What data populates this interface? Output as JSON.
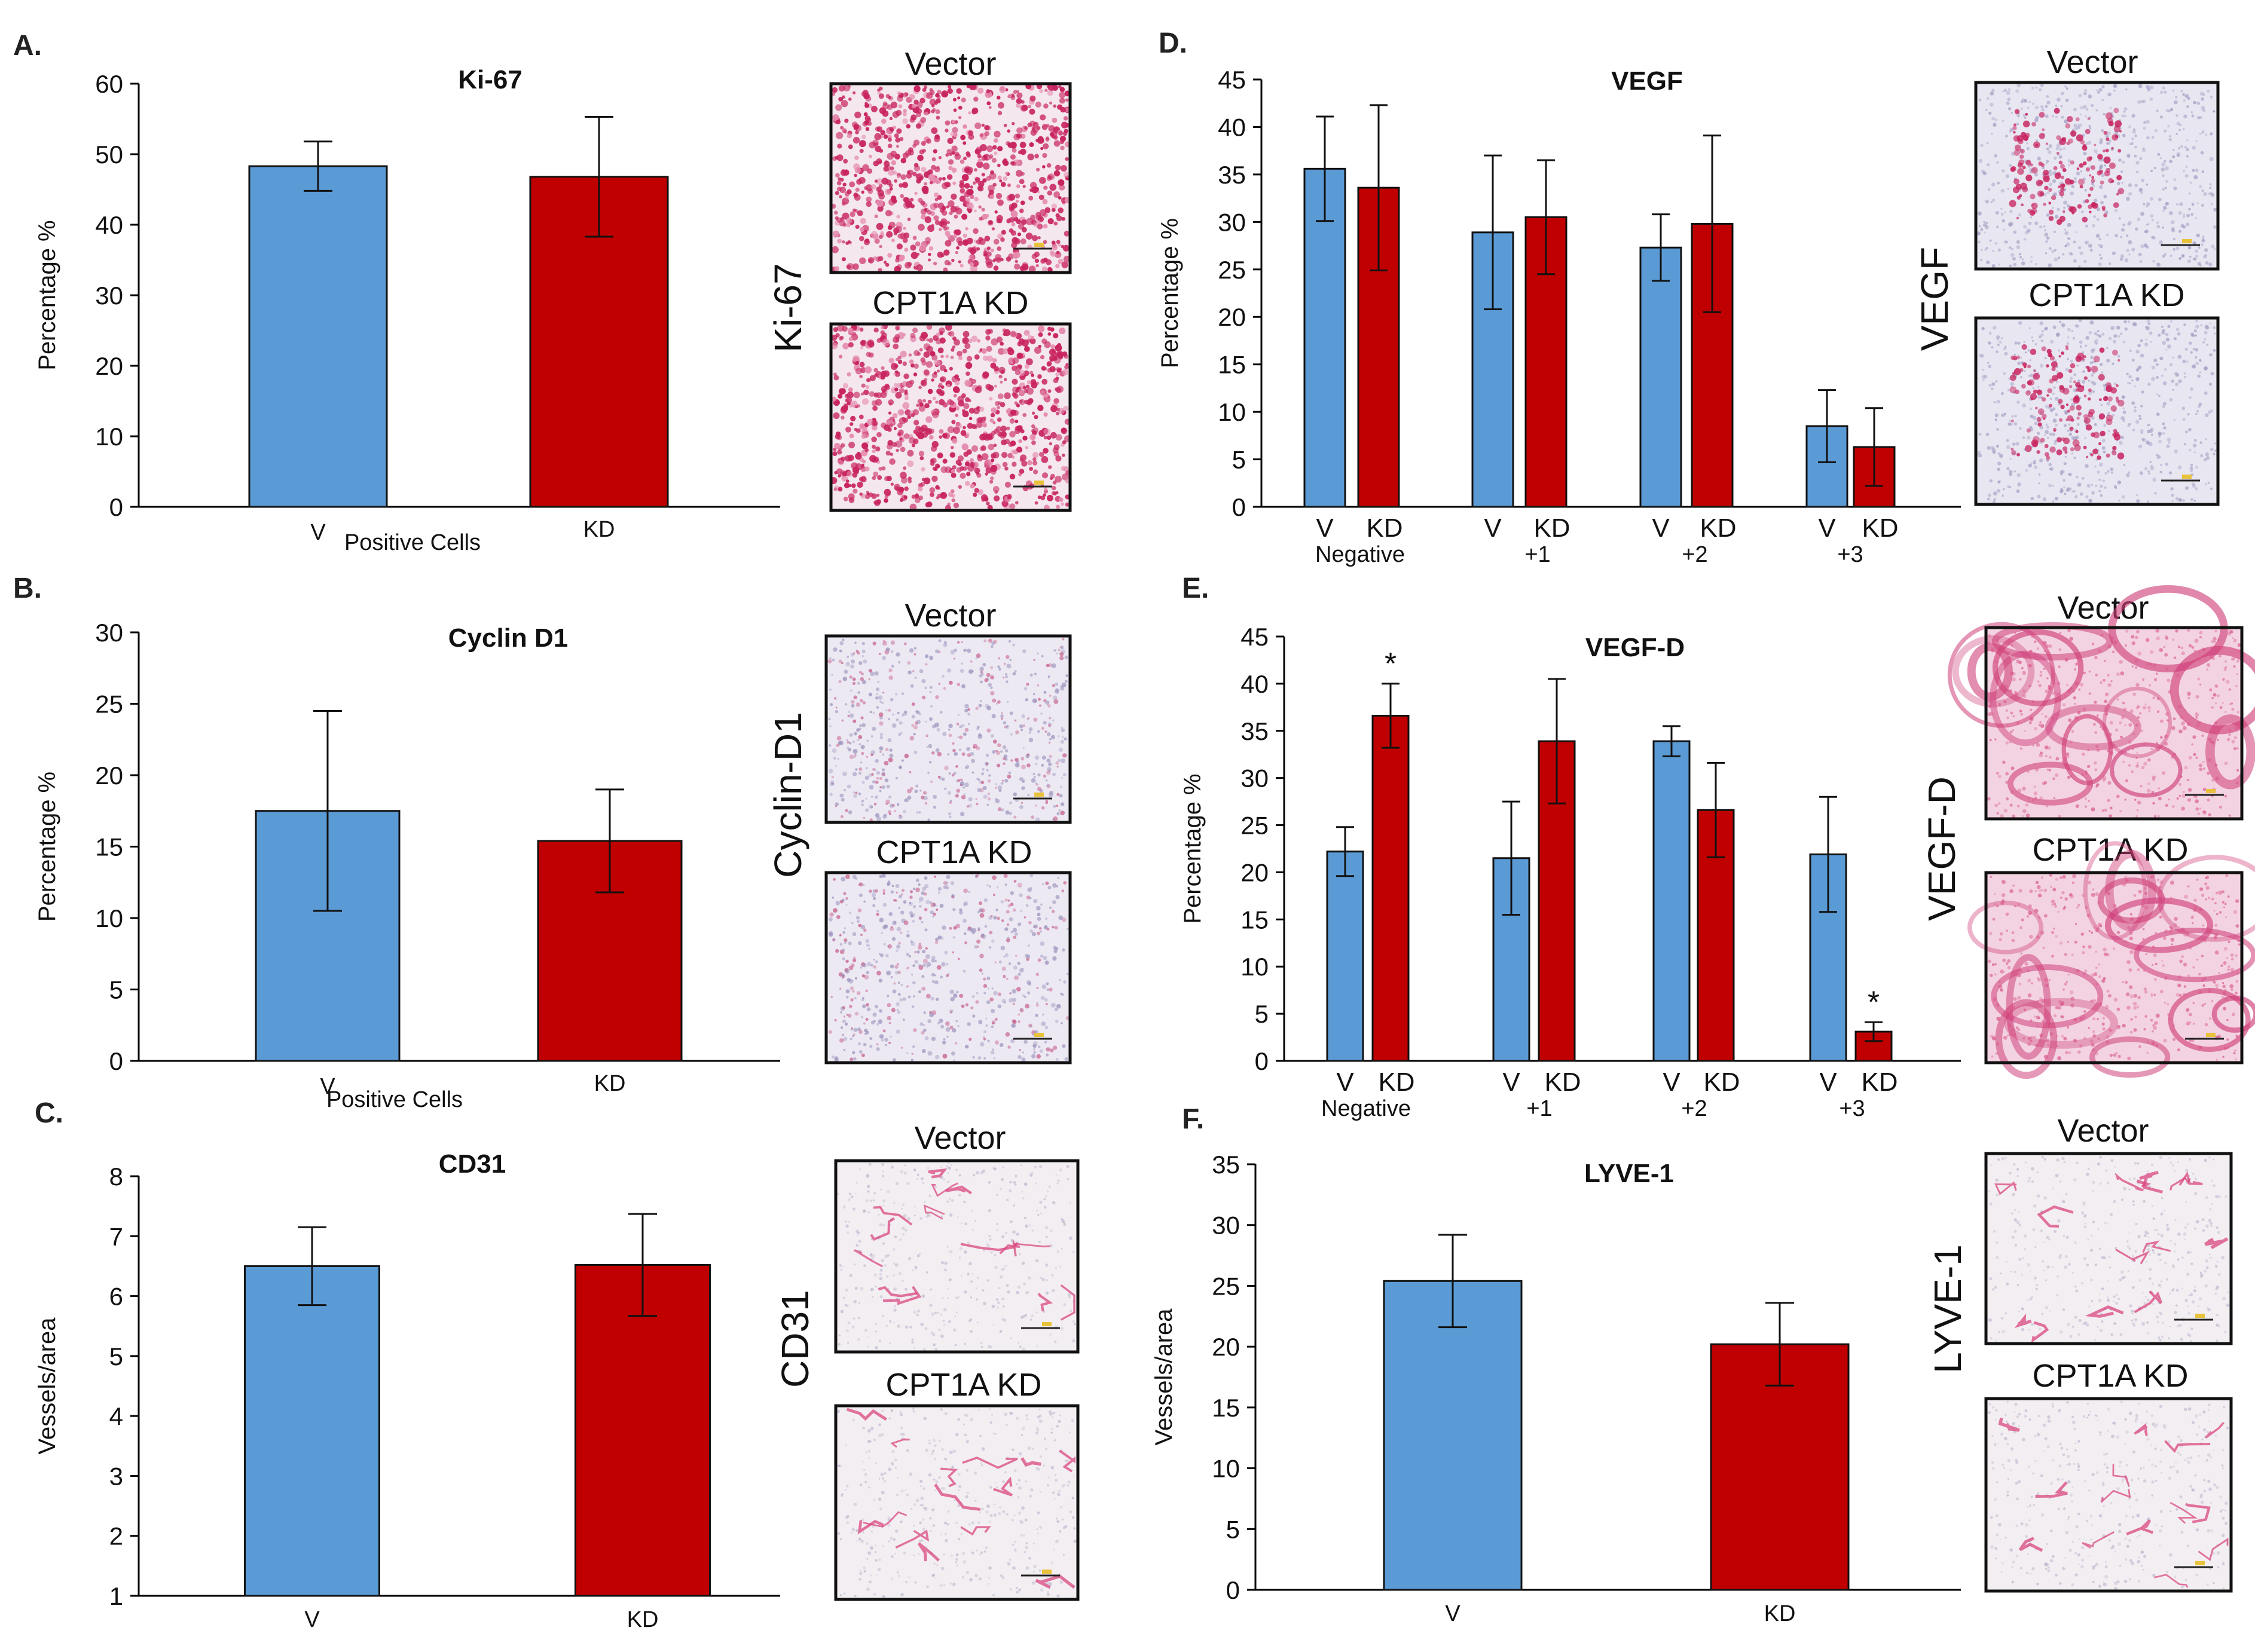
{
  "colors": {
    "vector": "#5b9bd5",
    "kd": "#c00000",
    "axis": "#000000",
    "stain": "#d4336c"
  },
  "chart_data": [
    {
      "id": "A",
      "panel_label": "A.",
      "type": "bar",
      "title": "Ki-67",
      "ylabel": "Percentage %",
      "xlabel": "Positive  Cells",
      "ylim": [
        0,
        60
      ],
      "yticks": [
        0,
        10,
        20,
        30,
        40,
        50,
        60
      ],
      "categories": [
        "V",
        "KD"
      ],
      "values": [
        48.3,
        46.8
      ],
      "errors": [
        3.5,
        8.5
      ],
      "sig": [],
      "group_labels": [],
      "images": {
        "label": "Ki-67",
        "top_title": "Vector",
        "bottom_title": "CPT1A KD",
        "style": "dense"
      }
    },
    {
      "id": "B",
      "panel_label": "B.",
      "type": "bar",
      "title": "Cyclin D1",
      "ylabel": "Percentage %",
      "xlabel": "Positive  Cells",
      "ylim": [
        0,
        30
      ],
      "yticks": [
        0,
        5,
        10,
        15,
        20,
        25,
        30
      ],
      "categories": [
        "V",
        "KD"
      ],
      "values": [
        17.5,
        15.4
      ],
      "errors": [
        7.0,
        3.6
      ],
      "sig": [],
      "group_labels": [],
      "images": {
        "label": "Cyclin-D1",
        "top_title": "Vector",
        "bottom_title": "CPT1A KD",
        "style": "sparse"
      }
    },
    {
      "id": "C",
      "panel_label": "C.",
      "type": "bar",
      "title": "CD31",
      "ylabel": "Vessels/area",
      "xlabel": "",
      "ylim": [
        1,
        8
      ],
      "yticks": [
        1,
        2,
        3,
        4,
        5,
        6,
        7,
        8
      ],
      "categories": [
        "V",
        "KD"
      ],
      "values": [
        6.5,
        6.52
      ],
      "errors": [
        0.65,
        0.85
      ],
      "sig": [],
      "group_labels": [],
      "images": {
        "label": "CD31",
        "top_title": "Vector",
        "bottom_title": "CPT1A KD",
        "style": "vessel"
      }
    },
    {
      "id": "D",
      "panel_label": "D.",
      "type": "bar",
      "title": "VEGF",
      "ylabel": "Percentage %",
      "xlabel": "",
      "ylim": [
        0,
        45
      ],
      "yticks": [
        0,
        5,
        10,
        15,
        20,
        25,
        30,
        35,
        40,
        45
      ],
      "categories": [
        "V",
        "KD",
        "V",
        "KD",
        "V",
        "KD",
        "V",
        "KD"
      ],
      "values": [
        35.6,
        33.6,
        28.9,
        30.5,
        27.3,
        29.8,
        8.5,
        6.3
      ],
      "errors": [
        5.5,
        8.7,
        8.1,
        6.0,
        3.5,
        9.3,
        3.8,
        4.1
      ],
      "sig": [],
      "group_labels": [
        "Negative",
        "+1",
        "+2",
        "+3"
      ],
      "images": {
        "label": "VEGF",
        "top_title": "Vector",
        "bottom_title": "CPT1A KD",
        "style": "patchy"
      }
    },
    {
      "id": "E",
      "panel_label": "E.",
      "type": "bar",
      "title": "VEGF-D",
      "ylabel": "Percentage %",
      "xlabel": "",
      "ylim": [
        0,
        45
      ],
      "yticks": [
        0,
        5,
        10,
        15,
        20,
        25,
        30,
        35,
        40,
        45
      ],
      "categories": [
        "V",
        "KD",
        "V",
        "KD",
        "V",
        "KD",
        "V",
        "KD"
      ],
      "values": [
        22.2,
        36.6,
        21.5,
        33.9,
        33.9,
        26.6,
        21.9,
        3.1
      ],
      "errors": [
        2.6,
        3.4,
        6.0,
        6.6,
        1.6,
        5.0,
        6.1,
        1.0
      ],
      "sig": [
        1,
        7
      ],
      "sig_symbol": "*",
      "group_labels": [
        "Negative",
        "+1",
        "+2",
        "+3"
      ],
      "images": {
        "label": "VEGF-D",
        "top_title": "Vector",
        "bottom_title": "CPT1A KD",
        "style": "pink"
      }
    },
    {
      "id": "F",
      "panel_label": "F.",
      "type": "bar",
      "title": "LYVE-1",
      "ylabel": "Vessels/area",
      "xlabel": "",
      "ylim": [
        0,
        35
      ],
      "yticks": [
        0,
        5,
        10,
        15,
        20,
        25,
        30,
        35
      ],
      "categories": [
        "V",
        "KD"
      ],
      "values": [
        25.4,
        20.2
      ],
      "errors": [
        3.8,
        3.4
      ],
      "sig": [],
      "group_labels": [],
      "images": {
        "label": "LYVE-1",
        "top_title": "Vector",
        "bottom_title": "CPT1A KD",
        "style": "vessel"
      }
    }
  ]
}
